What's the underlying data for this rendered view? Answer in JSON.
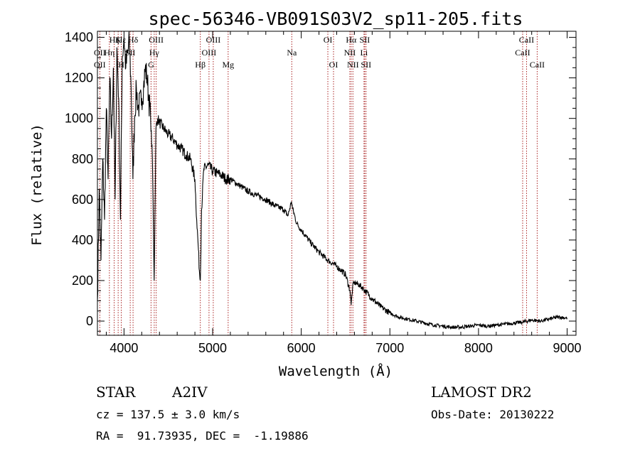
{
  "chart_data": {
    "type": "line",
    "title": "spec-56346-VB091S03V2_sp11-205.fits",
    "xlabel": "Wavelength (Å)",
    "ylabel": "Flux (relative)",
    "xlim": [
      3700,
      9100
    ],
    "ylim": [
      -70,
      1430
    ],
    "x_ticks": [
      4000,
      5000,
      6000,
      7000,
      8000,
      9000
    ],
    "y_ticks": [
      0,
      200,
      400,
      600,
      800,
      1000,
      1200,
      1400
    ],
    "grid": false,
    "series": [
      {
        "x": [
          3700,
          3720,
          3740,
          3760,
          3780,
          3800,
          3820,
          3840,
          3860,
          3880,
          3900,
          3920,
          3940,
          3960,
          3980,
          4000,
          4020,
          4060,
          4080,
          4100,
          4120,
          4140,
          4160,
          4200,
          4220,
          4240,
          4260,
          4280,
          4300,
          4320,
          4340,
          4360,
          4380,
          4400,
          4450,
          4500,
          4550,
          4600,
          4650,
          4700,
          4750,
          4800,
          4820,
          4840,
          4850,
          4861,
          4875,
          4900,
          4950,
          5000,
          5050,
          5100,
          5150,
          5200,
          5300,
          5400,
          5500,
          5600,
          5700,
          5800,
          5850,
          5890,
          5900,
          5950,
          6000,
          6100,
          6200,
          6300,
          6400,
          6500,
          6550,
          6563,
          6580,
          6600,
          6650,
          6700,
          6800,
          6900,
          7000,
          7100,
          7200,
          7300,
          7400,
          7500,
          7600,
          7700,
          7800,
          7900,
          8000,
          8100,
          8200,
          8300,
          8400,
          8500,
          8600,
          8700,
          8800,
          8900,
          9000
        ],
        "y": [
          100,
          650,
          300,
          800,
          500,
          1050,
          700,
          1200,
          900,
          1250,
          600,
          1350,
          1100,
          500,
          1300,
          1400,
          1250,
          1380,
          1150,
          700,
          1000,
          1150,
          1050,
          1100,
          1150,
          1250,
          1200,
          1100,
          1000,
          800,
          200,
          950,
          1000,
          980,
          950,
          920,
          900,
          870,
          850,
          820,
          800,
          700,
          500,
          350,
          250,
          200,
          550,
          750,
          770,
          740,
          730,
          720,
          700,
          700,
          670,
          640,
          620,
          600,
          570,
          550,
          520,
          590,
          560,
          480,
          450,
          390,
          340,
          300,
          270,
          230,
          150,
          80,
          170,
          190,
          180,
          160,
          110,
          70,
          40,
          20,
          10,
          0,
          -10,
          -20,
          -25,
          -30,
          -30,
          -25,
          -20,
          -25,
          -20,
          -15,
          -10,
          -5,
          5,
          0,
          10,
          20,
          15
        ]
      }
    ],
    "line_labels": [
      {
        "text": "Hε",
        "x": 3970,
        "row": 0
      },
      {
        "text": "OII",
        "x": 3727,
        "row": 1
      },
      {
        "text": "OII",
        "x": 3727,
        "row": 2
      },
      {
        "text": "Hζ",
        "x": 3889,
        "row": 0
      },
      {
        "text": "Hη",
        "x": 3835,
        "row": 1
      },
      {
        "text": "K",
        "x": 3934,
        "row": 0
      },
      {
        "text": "H",
        "x": 3969,
        "row": 2
      },
      {
        "text": "Hδ",
        "x": 4102,
        "row": 0
      },
      {
        "text": "SII",
        "x": 4070,
        "row": 1
      },
      {
        "text": "OIII",
        "x": 4363,
        "row": 0
      },
      {
        "text": "Hγ",
        "x": 4341,
        "row": 1
      },
      {
        "text": "G",
        "x": 4305,
        "row": 2
      },
      {
        "text": "Hβ",
        "x": 4861,
        "row": 2
      },
      {
        "text": "OIII",
        "x": 5007,
        "row": 0
      },
      {
        "text": "OIII",
        "x": 4959,
        "row": 1
      },
      {
        "text": "Mg",
        "x": 5175,
        "row": 2
      },
      {
        "text": "Na",
        "x": 5893,
        "row": 1
      },
      {
        "text": "OI",
        "x": 6300,
        "row": 0
      },
      {
        "text": "OI",
        "x": 6364,
        "row": 2
      },
      {
        "text": "Hα",
        "x": 6563,
        "row": 0
      },
      {
        "text": "SII",
        "x": 6716,
        "row": 0
      },
      {
        "text": "NII",
        "x": 6548,
        "row": 1
      },
      {
        "text": "Li",
        "x": 6708,
        "row": 1
      },
      {
        "text": "NII",
        "x": 6583,
        "row": 2
      },
      {
        "text": "SII",
        "x": 6731,
        "row": 2
      },
      {
        "text": "CaII",
        "x": 8542,
        "row": 0
      },
      {
        "text": "CaII",
        "x": 8498,
        "row": 1
      },
      {
        "text": "CaII",
        "x": 8662,
        "row": 2
      }
    ],
    "line_markers": [
      3727,
      3835,
      3889,
      3934,
      3969,
      4070,
      4102,
      4305,
      4341,
      4363,
      4861,
      4959,
      5007,
      5175,
      5893,
      6300,
      6364,
      6548,
      6563,
      6583,
      6708,
      6716,
      6731,
      8498,
      8542,
      8662
    ]
  },
  "info": {
    "object_class": "STAR",
    "subclass": "A2IV",
    "survey": "LAMOST DR2",
    "redshift": "cz = 137.5 ± 3.0 km/s",
    "obs_date": "Obs-Date: 20130222",
    "coords": "RA =  91.73935, DEC =  -1.19886"
  },
  "colors": {
    "axis": "#000000",
    "marker": "#aa2222",
    "spectrum": "#000000"
  }
}
